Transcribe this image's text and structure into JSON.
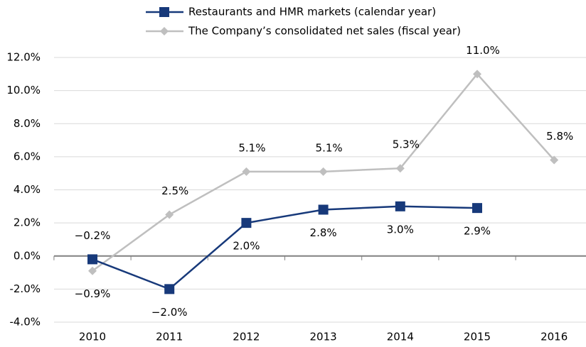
{
  "chart_data": {
    "type": "line",
    "categories": [
      "2010",
      "2011",
      "2012",
      "2013",
      "2014",
      "2015",
      "2016"
    ],
    "series": [
      {
        "name": "Restaurants and HMR markets (calendar year)",
        "color": "#17397a",
        "marker": "square",
        "values": [
          -0.2,
          -2.0,
          2.0,
          2.8,
          3.0,
          2.9,
          null
        ],
        "value_labels": [
          "−0.2%",
          "−2.0%",
          "2.0%",
          "2.8%",
          "3.0%",
          "2.9%",
          null
        ]
      },
      {
        "name": "The Company’s consolidated net sales (fiscal year)",
        "color": "#bfbfbf",
        "marker": "diamond",
        "values": [
          -0.9,
          2.5,
          5.1,
          5.1,
          5.3,
          11.0,
          5.8
        ],
        "value_labels": [
          "−0.9%",
          "2.5%",
          "5.1%",
          "5.1%",
          "5.3%",
          "11.0%",
          "5.8%"
        ]
      }
    ],
    "ylim": [
      -4,
      12
    ],
    "yticks": [
      {
        "value": -4,
        "label": "-4.0%"
      },
      {
        "value": -2,
        "label": "-2.0%"
      },
      {
        "value": 0,
        "label": "0.0%"
      },
      {
        "value": 2,
        "label": "2.0%"
      },
      {
        "value": 4,
        "label": "4.0%"
      },
      {
        "value": 6,
        "label": "6.0%"
      },
      {
        "value": 8,
        "label": "8.0%"
      },
      {
        "value": 10,
        "label": "10.0%"
      },
      {
        "value": 12,
        "label": "12.0%"
      }
    ],
    "grid": true,
    "legend": "top"
  }
}
